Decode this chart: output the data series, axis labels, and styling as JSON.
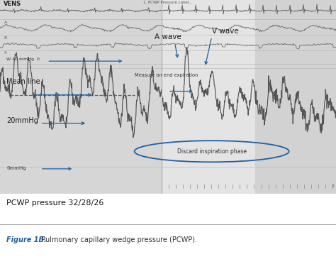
{
  "title": "PCWP pressure 32/28/26",
  "figure_label": "Figure 1B.",
  "figure_caption": " Pulmonary capillary wedge pressure (PCWP).",
  "header_text_left": "VENS",
  "header_text_center": "1. PCWP Pressure Label...",
  "label_mean_line": "Mean line",
  "label_20mmhg": "20mmHg",
  "label_0mmhg": "0mmHg",
  "label_40mmhg": "W 40 mmHg  0",
  "label_a_wave": "A wave",
  "label_v_wave": "V wave",
  "label_measure": "Measure on end expiration",
  "label_discard": "Discard inspiration phase",
  "chart_bg_light": "#e8e8e8",
  "chart_bg_dark": "#d4d4d4",
  "chart_right_bg": "#d8d8d8",
  "arrow_color": "#2060a0",
  "line_color": "#606060",
  "thin_line_color": "#888888",
  "ellipse_color": "#2060a0",
  "text_dark": "#1a1a1a",
  "text_mid": "#333333",
  "footer_white_bg": "#ffffff",
  "footer_grey_bg": "#d8d8d8",
  "footer_label_color": "#2060a0",
  "sep_line_color": "#cccccc",
  "row_sep_color": "#bbbbbb",
  "vspan_left_color": "#d6d6d6",
  "vspan_right_color": "#e4e4e4",
  "vspan_far_right_color": "#d2d2d2"
}
